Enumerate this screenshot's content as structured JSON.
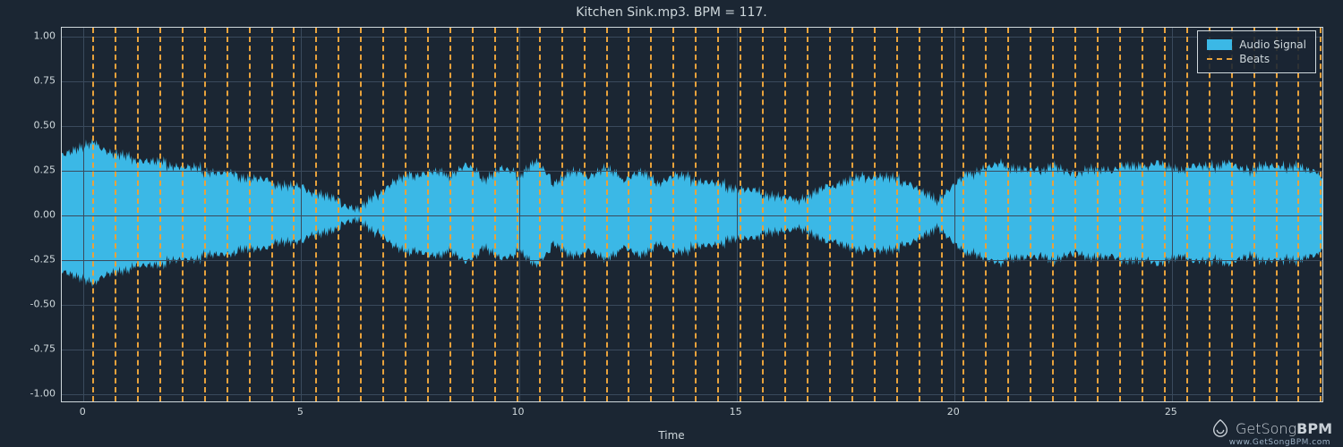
{
  "chart": {
    "title": "Kitchen Sink.mp3. BPM = 117.",
    "xlabel": "Time",
    "background_color": "#1b2633",
    "axis_color": "#cfd8dc",
    "grid_color": "#3a4a5c",
    "tick_fontsize": 11,
    "title_fontsize": 14,
    "xlabel_fontsize": 12,
    "xlim": [
      -0.5,
      28.5
    ],
    "ylim": [
      -1.05,
      1.05
    ],
    "xticks": [
      0,
      5,
      10,
      15,
      20,
      25
    ],
    "yticks": [
      -1.0,
      -0.75,
      -0.5,
      -0.25,
      0.0,
      0.25,
      0.5,
      0.75,
      1.0
    ],
    "waveform": {
      "color": "#3bb8e6",
      "opacity": 1.0,
      "envelope": [
        [
          0.0,
          0.38
        ],
        [
          0.3,
          0.4
        ],
        [
          0.6,
          0.35
        ],
        [
          1.0,
          0.32
        ],
        [
          1.5,
          0.3
        ],
        [
          2.0,
          0.28
        ],
        [
          2.5,
          0.26
        ],
        [
          3.0,
          0.24
        ],
        [
          3.5,
          0.22
        ],
        [
          4.0,
          0.2
        ],
        [
          4.5,
          0.17
        ],
        [
          5.0,
          0.15
        ],
        [
          5.4,
          0.12
        ],
        [
          5.8,
          0.08
        ],
        [
          6.1,
          0.05
        ],
        [
          6.3,
          0.03
        ],
        [
          6.5,
          0.06
        ],
        [
          6.8,
          0.12
        ],
        [
          7.1,
          0.18
        ],
        [
          7.5,
          0.22
        ],
        [
          8.0,
          0.24
        ],
        [
          8.4,
          0.22
        ],
        [
          8.8,
          0.28
        ],
        [
          9.2,
          0.2
        ],
        [
          9.6,
          0.26
        ],
        [
          10.0,
          0.22
        ],
        [
          10.4,
          0.3
        ],
        [
          10.8,
          0.18
        ],
        [
          11.2,
          0.24
        ],
        [
          11.6,
          0.22
        ],
        [
          12.0,
          0.26
        ],
        [
          12.4,
          0.2
        ],
        [
          12.8,
          0.24
        ],
        [
          13.2,
          0.18
        ],
        [
          13.6,
          0.22
        ],
        [
          14.0,
          0.2
        ],
        [
          14.4,
          0.18
        ],
        [
          14.8,
          0.16
        ],
        [
          15.2,
          0.14
        ],
        [
          15.6,
          0.12
        ],
        [
          16.0,
          0.1
        ],
        [
          16.3,
          0.08
        ],
        [
          16.6,
          0.1
        ],
        [
          17.0,
          0.14
        ],
        [
          17.4,
          0.18
        ],
        [
          17.8,
          0.2
        ],
        [
          18.2,
          0.22
        ],
        [
          18.6,
          0.2
        ],
        [
          19.0,
          0.18
        ],
        [
          19.3,
          0.12
        ],
        [
          19.6,
          0.08
        ],
        [
          19.9,
          0.14
        ],
        [
          20.3,
          0.22
        ],
        [
          20.7,
          0.26
        ],
        [
          21.1,
          0.28
        ],
        [
          21.5,
          0.26
        ],
        [
          21.9,
          0.24
        ],
        [
          22.3,
          0.28
        ],
        [
          22.7,
          0.22
        ],
        [
          23.1,
          0.26
        ],
        [
          23.5,
          0.24
        ],
        [
          23.9,
          0.28
        ],
        [
          24.3,
          0.26
        ],
        [
          24.7,
          0.3
        ],
        [
          25.1,
          0.24
        ],
        [
          25.5,
          0.28
        ],
        [
          25.9,
          0.26
        ],
        [
          26.3,
          0.3
        ],
        [
          26.7,
          0.24
        ],
        [
          27.1,
          0.28
        ],
        [
          27.5,
          0.26
        ],
        [
          27.9,
          0.28
        ],
        [
          28.2,
          0.24
        ],
        [
          28.5,
          0.22
        ]
      ],
      "noise_amplitude": 0.04,
      "noise_freq": 180
    },
    "beats": {
      "color": "#e8a23c",
      "dash": "4 4",
      "linewidth": 2,
      "bpm": 117,
      "first_beat_time": 0.2,
      "count": 56
    },
    "legend": {
      "position": "upper-right",
      "border_color": "#cfd8dc",
      "bg_color": "rgba(27,38,51,0.9)",
      "items": [
        {
          "label": "Audio Signal",
          "type": "fill",
          "color": "#3bb8e6"
        },
        {
          "label": "Beats",
          "type": "dash",
          "color": "#e8a23c"
        }
      ]
    }
  },
  "watermark": {
    "icon_color": "#e8eef4",
    "text_light": "GetSong",
    "text_bold": "BPM",
    "subtext": "www.GetSongBPM.com"
  }
}
